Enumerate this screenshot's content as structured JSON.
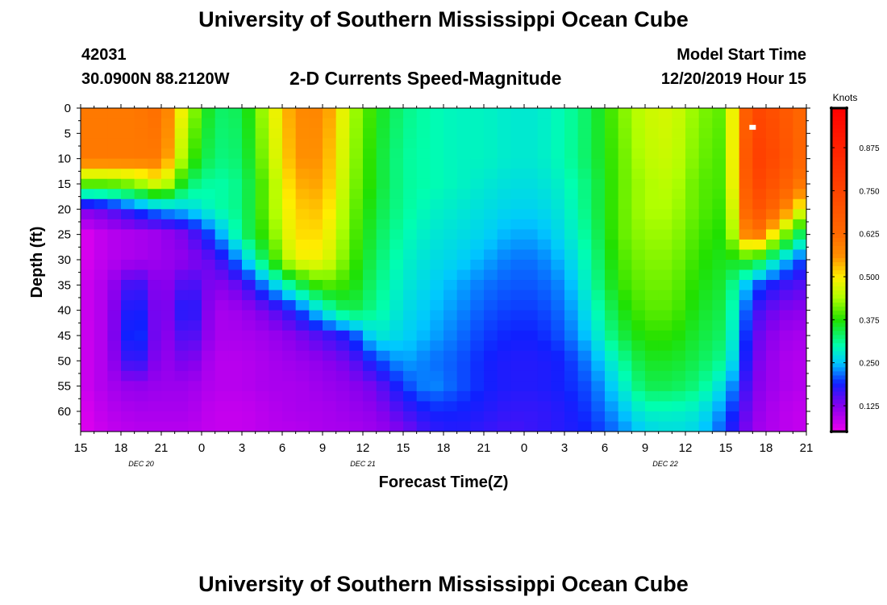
{
  "page": {
    "title_top": "University of Southern Mississippi Ocean Cube",
    "title_bottom": "University of Southern Mississippi Ocean Cube",
    "station_id": "42031",
    "location": "30.0900N 88.2120W",
    "model_start_label": "Model Start Time",
    "model_start_value": "12/20/2019 Hour 15"
  },
  "chart_data": {
    "type": "heatmap",
    "title": "2-D Currents Speed-Magnitude",
    "xlabel": "Forecast Time(Z)",
    "ylabel": "Depth (ft)",
    "x_range_hours": [
      0,
      54
    ],
    "x_ticks": [
      {
        "hour": 0,
        "label": "15"
      },
      {
        "hour": 3,
        "label": "18"
      },
      {
        "hour": 6,
        "label": "21"
      },
      {
        "hour": 9,
        "label": "0"
      },
      {
        "hour": 12,
        "label": "3"
      },
      {
        "hour": 15,
        "label": "6"
      },
      {
        "hour": 18,
        "label": "9"
      },
      {
        "hour": 21,
        "label": "12"
      },
      {
        "hour": 24,
        "label": "15"
      },
      {
        "hour": 27,
        "label": "18"
      },
      {
        "hour": 30,
        "label": "21"
      },
      {
        "hour": 33,
        "label": "0"
      },
      {
        "hour": 36,
        "label": "3"
      },
      {
        "hour": 39,
        "label": "6"
      },
      {
        "hour": 42,
        "label": "9"
      },
      {
        "hour": 45,
        "label": "12"
      },
      {
        "hour": 48,
        "label": "15"
      },
      {
        "hour": 51,
        "label": "18"
      },
      {
        "hour": 54,
        "label": "21"
      }
    ],
    "date_labels": [
      {
        "hour": 4.5,
        "label": "DEC  20"
      },
      {
        "hour": 21,
        "label": "DEC  21"
      },
      {
        "hour": 43.5,
        "label": "DEC  22"
      }
    ],
    "y_range": [
      0,
      64
    ],
    "y_ticks": [
      0,
      5,
      10,
      15,
      20,
      25,
      30,
      35,
      40,
      45,
      50,
      55,
      60
    ],
    "colorbar": {
      "label": "Knots",
      "range": [
        0.05,
        0.99
      ],
      "ticks": [
        "0.875",
        "0.750",
        "0.625",
        "0.500",
        "0.375",
        "0.250",
        "0.125"
      ],
      "tick_values": [
        0.875,
        0.75,
        0.625,
        0.5,
        0.375,
        0.25,
        0.125
      ]
    },
    "color_scale": [
      {
        "v": 0.05,
        "c": "#ee00ee"
      },
      {
        "v": 0.125,
        "c": "#8800ee"
      },
      {
        "v": 0.19,
        "c": "#1020ff"
      },
      {
        "v": 0.25,
        "c": "#00c8ff"
      },
      {
        "v": 0.3,
        "c": "#00ffb0"
      },
      {
        "v": 0.375,
        "c": "#20e000"
      },
      {
        "v": 0.44,
        "c": "#b0ff00"
      },
      {
        "v": 0.5,
        "c": "#ffee00"
      },
      {
        "v": 0.56,
        "c": "#ff9000"
      },
      {
        "v": 0.625,
        "c": "#ff6a00"
      },
      {
        "v": 0.75,
        "c": "#ff4400"
      },
      {
        "v": 0.99,
        "c": "#ff0000"
      }
    ],
    "field_hours": [
      0,
      2,
      4,
      6,
      8,
      10,
      12,
      14,
      16,
      18,
      20,
      22,
      24,
      26,
      28,
      30,
      32,
      34,
      36,
      38,
      40,
      42,
      44,
      46,
      48,
      50,
      52,
      54
    ],
    "field_depths": [
      0,
      10,
      15,
      20,
      25,
      30,
      35,
      40,
      45,
      50,
      55,
      60,
      64
    ],
    "speed_field": [
      [
        0.6,
        0.6,
        0.6,
        0.62,
        0.45,
        0.33,
        0.34,
        0.46,
        0.57,
        0.58,
        0.45,
        0.37,
        0.32,
        0.3,
        0.29,
        0.29,
        0.28,
        0.28,
        0.3,
        0.34,
        0.41,
        0.46,
        0.47,
        0.42,
        0.4,
        0.75,
        0.7,
        0.62
      ],
      [
        0.6,
        0.6,
        0.6,
        0.6,
        0.4,
        0.32,
        0.33,
        0.44,
        0.56,
        0.56,
        0.44,
        0.36,
        0.31,
        0.3,
        0.29,
        0.29,
        0.28,
        0.28,
        0.3,
        0.34,
        0.4,
        0.45,
        0.46,
        0.41,
        0.39,
        0.78,
        0.72,
        0.62
      ],
      [
        0.4,
        0.4,
        0.42,
        0.48,
        0.33,
        0.3,
        0.32,
        0.42,
        0.54,
        0.55,
        0.43,
        0.36,
        0.31,
        0.3,
        0.29,
        0.28,
        0.27,
        0.27,
        0.29,
        0.33,
        0.4,
        0.44,
        0.45,
        0.4,
        0.39,
        0.76,
        0.68,
        0.58
      ],
      [
        0.13,
        0.15,
        0.2,
        0.24,
        0.26,
        0.3,
        0.32,
        0.42,
        0.52,
        0.53,
        0.42,
        0.35,
        0.31,
        0.29,
        0.28,
        0.27,
        0.26,
        0.26,
        0.28,
        0.33,
        0.4,
        0.44,
        0.44,
        0.4,
        0.38,
        0.72,
        0.62,
        0.45
      ],
      [
        0.06,
        0.09,
        0.1,
        0.11,
        0.14,
        0.22,
        0.32,
        0.4,
        0.51,
        0.51,
        0.41,
        0.34,
        0.3,
        0.28,
        0.27,
        0.26,
        0.24,
        0.24,
        0.27,
        0.32,
        0.4,
        0.43,
        0.43,
        0.39,
        0.37,
        0.64,
        0.45,
        0.3
      ],
      [
        0.06,
        0.09,
        0.1,
        0.11,
        0.12,
        0.15,
        0.24,
        0.36,
        0.49,
        0.49,
        0.4,
        0.33,
        0.29,
        0.27,
        0.26,
        0.24,
        0.22,
        0.22,
        0.25,
        0.31,
        0.39,
        0.42,
        0.42,
        0.38,
        0.36,
        0.38,
        0.27,
        0.19
      ],
      [
        0.07,
        0.1,
        0.18,
        0.11,
        0.17,
        0.12,
        0.15,
        0.24,
        0.33,
        0.4,
        0.38,
        0.32,
        0.28,
        0.26,
        0.24,
        0.22,
        0.21,
        0.21,
        0.23,
        0.3,
        0.38,
        0.41,
        0.41,
        0.37,
        0.35,
        0.22,
        0.17,
        0.15
      ],
      [
        0.07,
        0.1,
        0.21,
        0.11,
        0.2,
        0.1,
        0.11,
        0.14,
        0.19,
        0.28,
        0.35,
        0.31,
        0.27,
        0.25,
        0.23,
        0.21,
        0.2,
        0.2,
        0.22,
        0.28,
        0.36,
        0.4,
        0.4,
        0.36,
        0.34,
        0.17,
        0.13,
        0.12
      ],
      [
        0.07,
        0.1,
        0.22,
        0.11,
        0.17,
        0.1,
        0.1,
        0.11,
        0.13,
        0.16,
        0.19,
        0.28,
        0.26,
        0.24,
        0.22,
        0.2,
        0.19,
        0.19,
        0.21,
        0.26,
        0.34,
        0.38,
        0.38,
        0.35,
        0.33,
        0.15,
        0.11,
        0.1
      ],
      [
        0.07,
        0.1,
        0.19,
        0.11,
        0.14,
        0.09,
        0.09,
        0.1,
        0.11,
        0.12,
        0.14,
        0.2,
        0.24,
        0.22,
        0.21,
        0.19,
        0.18,
        0.18,
        0.19,
        0.23,
        0.3,
        0.36,
        0.36,
        0.34,
        0.31,
        0.14,
        0.1,
        0.09
      ],
      [
        0.07,
        0.1,
        0.12,
        0.11,
        0.11,
        0.09,
        0.09,
        0.1,
        0.1,
        0.11,
        0.12,
        0.14,
        0.2,
        0.23,
        0.21,
        0.19,
        0.18,
        0.18,
        0.19,
        0.21,
        0.27,
        0.34,
        0.34,
        0.32,
        0.26,
        0.13,
        0.1,
        0.09
      ],
      [
        0.06,
        0.09,
        0.1,
        0.1,
        0.1,
        0.08,
        0.08,
        0.09,
        0.1,
        0.1,
        0.11,
        0.12,
        0.16,
        0.19,
        0.19,
        0.18,
        0.17,
        0.17,
        0.18,
        0.2,
        0.24,
        0.29,
        0.29,
        0.28,
        0.22,
        0.12,
        0.09,
        0.08
      ],
      [
        0.06,
        0.08,
        0.09,
        0.09,
        0.09,
        0.08,
        0.08,
        0.09,
        0.09,
        0.1,
        0.1,
        0.11,
        0.13,
        0.17,
        0.18,
        0.17,
        0.16,
        0.17,
        0.18,
        0.19,
        0.22,
        0.26,
        0.27,
        0.26,
        0.2,
        0.11,
        0.09,
        0.08
      ]
    ],
    "marker": {
      "hour": 50,
      "depth": 3.8
    }
  }
}
